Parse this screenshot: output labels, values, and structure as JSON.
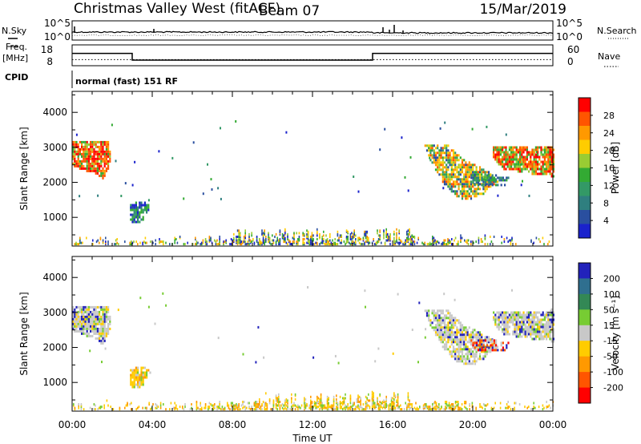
{
  "header": {
    "title": "Christmas Valley West (fitACF)",
    "beam": "Beam 07",
    "date": "15/Mar/2019"
  },
  "top_panels": {
    "nsky_label": "N.Sky",
    "nsearch_label": "N.Search",
    "noise_ticks": [
      "10^5",
      "10^0"
    ],
    "freq_label": "Freq.",
    "freq_unit": "[MHz]",
    "freq_ticks": [
      "18",
      "8"
    ],
    "nave_label": "Nave",
    "nave_ticks": [
      "60",
      "0"
    ],
    "cpid_label": "CPID",
    "cpid_text": "normal (fast) 151 RF"
  },
  "axes": {
    "ylabel": "Slant Range [km]",
    "y_ticks": [
      "4000",
      "3000",
      "2000",
      "1000"
    ],
    "x_ticks": [
      "00:00",
      "04:00",
      "08:00",
      "12:00",
      "16:00",
      "20:00",
      "00:00"
    ],
    "xlabel": "Time UT"
  },
  "colorbars": {
    "power": {
      "label": "Power [dB]",
      "ticks": [
        "28",
        "24",
        "20",
        "16",
        "12",
        "8",
        "4"
      ],
      "colors": [
        "#ff0000",
        "#ff5500",
        "#ff9900",
        "#ffcc00",
        "#99cc33",
        "#33aa33",
        "#339966",
        "#2f7f7f",
        "#2a4f9f",
        "#1a22cc"
      ]
    },
    "velocity": {
      "label": "Velocity [m s⁻¹]",
      "ticks": [
        "200",
        "100",
        "50",
        "15",
        "-15",
        "-50",
        "-100",
        "-200"
      ],
      "colors": [
        "#2222bb",
        "#2f6f8f",
        "#338855",
        "#77cc33",
        "#c8c8c8",
        "#ffcc00",
        "#ff9900",
        "#ff5500",
        "#ff0000"
      ]
    }
  },
  "chart_data": {
    "type": "heatmap",
    "title": "Christmas Valley West (fitACF)",
    "xlabel": "Time UT",
    "ylabel": "Slant Range [km]",
    "xlim": [
      0,
      24
    ],
    "ylim": [
      180,
      4600
    ],
    "frequency_mhz": [
      {
        "start": 0,
        "end": 3,
        "value": 14
      },
      {
        "start": 3,
        "end": 15,
        "value": 10.5
      },
      {
        "start": 15,
        "end": 24,
        "value": 14
      }
    ],
    "nave": 20,
    "power_regions": [
      {
        "t0": 0.0,
        "t1": 1.9,
        "r0": 2100,
        "r1": 3250,
        "level": "high"
      },
      {
        "t0": 2.8,
        "t1": 3.9,
        "r0": 850,
        "r1": 1500,
        "level": "low"
      },
      {
        "t0": 17.5,
        "t1": 21.0,
        "r0": 1500,
        "r1": 3150,
        "level": "mid"
      },
      {
        "t0": 21.0,
        "t1": 24.0,
        "r0": 2200,
        "r1": 3100,
        "level": "high"
      },
      {
        "t0": 0.0,
        "t1": 24.0,
        "r0": 200,
        "r1": 450,
        "level": "ground"
      }
    ],
    "velocity_regions": [
      {
        "t0": 0.0,
        "t1": 1.9,
        "r0": 2100,
        "r1": 3250,
        "velocity": "near-zero"
      },
      {
        "t0": 2.8,
        "t1": 3.9,
        "r0": 850,
        "r1": 1500,
        "velocity": "negative"
      },
      {
        "t0": 17.5,
        "t1": 21.0,
        "r0": 1500,
        "r1": 3150,
        "velocity": "near-zero"
      },
      {
        "t0": 21.0,
        "t1": 24.0,
        "r0": 2200,
        "r1": 3100,
        "velocity": "near-zero"
      },
      {
        "t0": 8.0,
        "t1": 20.0,
        "r0": 200,
        "r1": 600,
        "velocity": "negative"
      }
    ]
  }
}
